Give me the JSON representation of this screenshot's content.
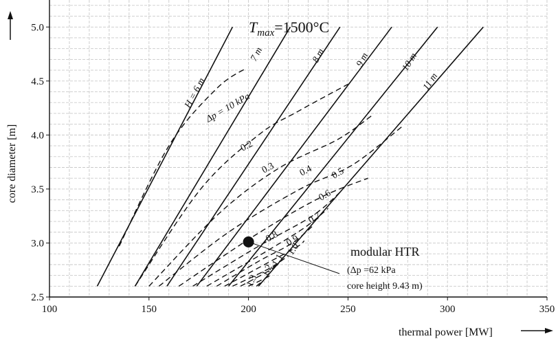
{
  "chart_data": {
    "type": "line",
    "title": "T_max=1500°C",
    "title_parts": {
      "symbol": "T",
      "subscript": "max",
      "rest": "=1500°C"
    },
    "xlabel": "thermal power [MW]",
    "ylabel": "core diameter [m]",
    "xlim": [
      100,
      350
    ],
    "ylim": [
      2.5,
      5.25
    ],
    "xticks": [
      100,
      150,
      200,
      250,
      300,
      350
    ],
    "yticks": [
      2.5,
      3.0,
      3.5,
      4.0,
      4.5,
      5.0
    ],
    "grid": true,
    "height_lines": [
      {
        "label": "H = 6 m",
        "points": [
          [
            124,
            2.6
          ],
          [
            192,
            5.0
          ]
        ]
      },
      {
        "label": "7 m",
        "points": [
          [
            143,
            2.6
          ],
          [
            221,
            5.0
          ]
        ]
      },
      {
        "label": "8 m",
        "points": [
          [
            159,
            2.6
          ],
          [
            246,
            5.0
          ]
        ]
      },
      {
        "label": "9 m",
        "points": [
          [
            174,
            2.6
          ],
          [
            272,
            5.0
          ]
        ]
      },
      {
        "label": "10 m",
        "points": [
          [
            190,
            2.6
          ],
          [
            295,
            5.0
          ]
        ]
      },
      {
        "label": "11 m",
        "points": [
          [
            205,
            2.6
          ],
          [
            318,
            5.0
          ]
        ]
      }
    ],
    "pressure_drop_lines": [
      {
        "label": "Δp = 10 kPa",
        "points": [
          [
            135,
            2.97
          ],
          [
            160,
            3.9
          ],
          [
            184,
            4.43
          ],
          [
            199,
            4.62
          ]
        ]
      },
      {
        "label": "0.2",
        "points": [
          [
            143,
            2.6
          ],
          [
            176,
            3.5
          ],
          [
            205,
            4.0
          ],
          [
            225,
            4.22
          ],
          [
            250,
            4.47
          ]
        ]
      },
      {
        "label": "0.3",
        "points": [
          [
            150,
            2.6
          ],
          [
            185,
            3.27
          ],
          [
            215,
            3.69
          ],
          [
            245,
            3.96
          ],
          [
            262,
            4.18
          ]
        ]
      },
      {
        "label": "0.4",
        "points": [
          [
            155,
            2.6
          ],
          [
            190,
            3.1
          ],
          [
            226,
            3.5
          ],
          [
            252,
            3.72
          ],
          [
            278,
            4.09
          ]
        ]
      },
      {
        "label": "0.5",
        "points": [
          [
            165,
            2.6
          ],
          [
            204,
            3.08
          ],
          [
            236,
            3.42
          ],
          [
            260,
            3.6
          ]
        ]
      },
      {
        "label": "0.6",
        "points": [
          [
            172,
            2.6
          ],
          [
            205,
            2.97
          ],
          [
            232,
            3.25
          ],
          [
            246,
            3.47
          ]
        ]
      },
      {
        "label": "0.7",
        "points": [
          [
            179,
            2.6
          ],
          [
            206,
            2.89
          ],
          [
            228,
            3.14
          ],
          [
            240,
            3.32
          ]
        ]
      },
      {
        "label": "0.8",
        "points": [
          [
            184,
            2.6
          ],
          [
            205,
            2.83
          ],
          [
            222,
            3.0
          ],
          [
            233,
            3.17
          ]
        ]
      },
      {
        "label": "0.9",
        "points": [
          [
            188,
            2.6
          ],
          [
            208,
            2.8
          ],
          [
            224,
            2.96
          ],
          [
            228,
            3.02
          ]
        ]
      },
      {
        "label": "1.0",
        "points": [
          [
            192,
            2.6
          ],
          [
            210,
            2.76
          ],
          [
            220,
            2.88
          ]
        ]
      },
      {
        "label": "1.1",
        "points": [
          [
            196,
            2.6
          ],
          [
            210,
            2.74
          ],
          [
            214,
            2.8
          ]
        ]
      },
      {
        "label": "1.2",
        "points": [
          [
            200,
            2.6
          ],
          [
            208,
            2.67
          ],
          [
            211,
            2.7
          ]
        ]
      },
      {
        "label": "1.3",
        "points": [
          [
            204,
            2.6
          ],
          [
            206,
            2.63
          ],
          [
            208,
            2.64
          ]
        ]
      }
    ],
    "marker": {
      "x": 200,
      "y": 3.01,
      "label": "modular HTR"
    },
    "annotation": {
      "title": "modular HTR",
      "line1": "(Δp =62 kPa",
      "line2": "core height 9.43 m)"
    }
  }
}
